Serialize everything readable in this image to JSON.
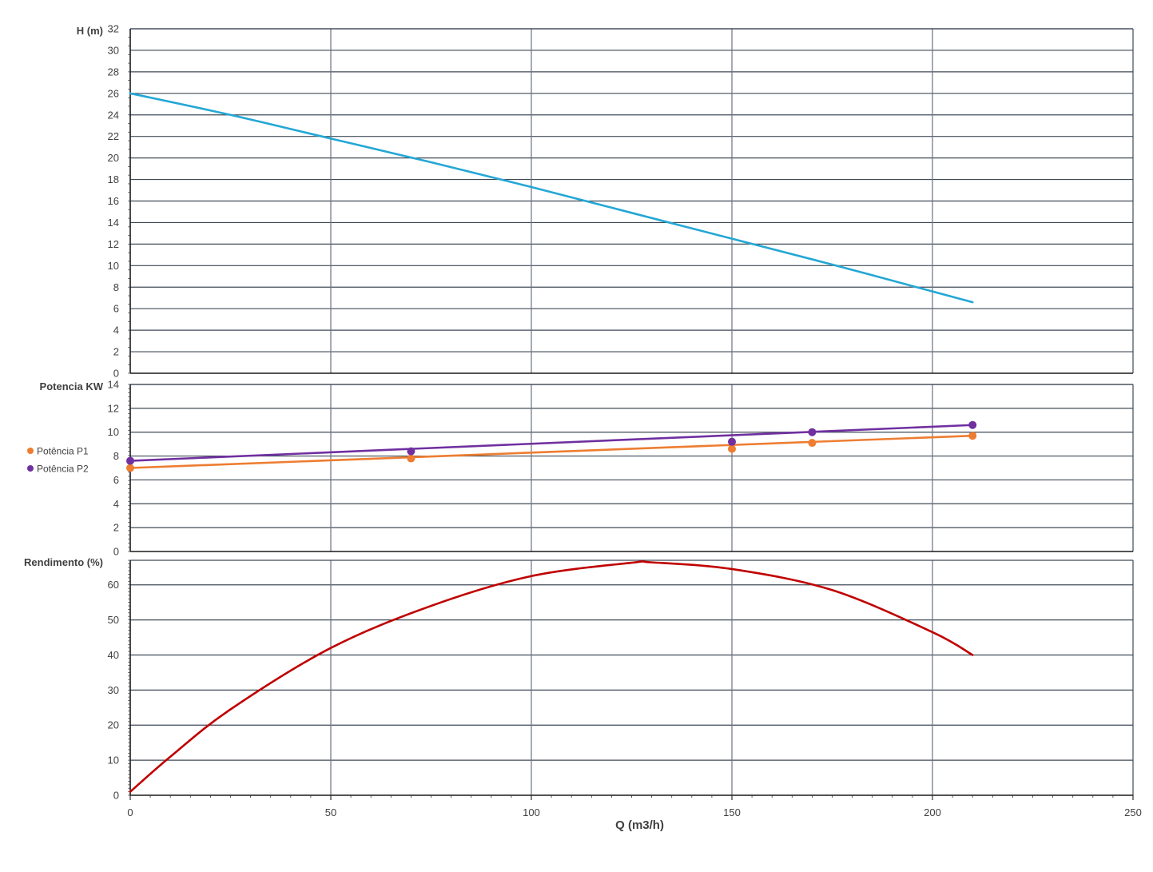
{
  "chart_data": [
    {
      "type": "line",
      "panel": "head",
      "ylabel": "H (m)",
      "ylim": [
        0,
        32
      ],
      "ytick_step": 2,
      "xlim": [
        0,
        250
      ],
      "grid": true,
      "series": [
        {
          "color": "#23a7d5",
          "x": [
            0,
            25,
            50,
            75,
            100,
            125,
            150,
            175,
            200,
            210
          ],
          "y": [
            26,
            24,
            21.8,
            19.6,
            17.3,
            14.9,
            12.5,
            10.1,
            7.6,
            6.6
          ]
        }
      ]
    },
    {
      "type": "line",
      "panel": "power",
      "ylabel": "Potencia KW",
      "ylim": [
        0,
        14
      ],
      "ytick_step": 2,
      "xlim": [
        0,
        250
      ],
      "grid": true,
      "legend_position": "left",
      "series": [
        {
          "name": "Potência P1",
          "color": "#ed7d31",
          "x": [
            0,
            70,
            150,
            170,
            210
          ],
          "y": [
            7.0,
            7.8,
            8.6,
            9.1,
            9.7
          ],
          "fit": [
            [
              0,
              7.0
            ],
            [
              210,
              9.7
            ]
          ]
        },
        {
          "name": "Potência P2",
          "color": "#7030a0",
          "x": [
            0,
            70,
            150,
            170,
            210
          ],
          "y": [
            7.6,
            8.4,
            9.2,
            10.0,
            10.6
          ],
          "fit": [
            [
              0,
              7.6
            ],
            [
              210,
              10.6
            ]
          ]
        }
      ]
    },
    {
      "type": "line",
      "panel": "efficiency",
      "ylabel": "Rendimento (%)",
      "ylim": [
        0,
        67
      ],
      "ytick_values": [
        0,
        10,
        20,
        30,
        40,
        50,
        60
      ],
      "xlim": [
        0,
        250
      ],
      "xticks": [
        0,
        50,
        100,
        150,
        200,
        250
      ],
      "xlabel": "Q (m3/h)",
      "grid": true,
      "series": [
        {
          "color": "#c00000",
          "x": [
            0,
            10,
            25,
            50,
            75,
            100,
            125,
            130,
            150,
            175,
            200,
            210
          ],
          "y": [
            1,
            11,
            24.5,
            42,
            54,
            62.5,
            66.3,
            66.4,
            64.5,
            58.5,
            46.5,
            40
          ]
        }
      ]
    }
  ]
}
